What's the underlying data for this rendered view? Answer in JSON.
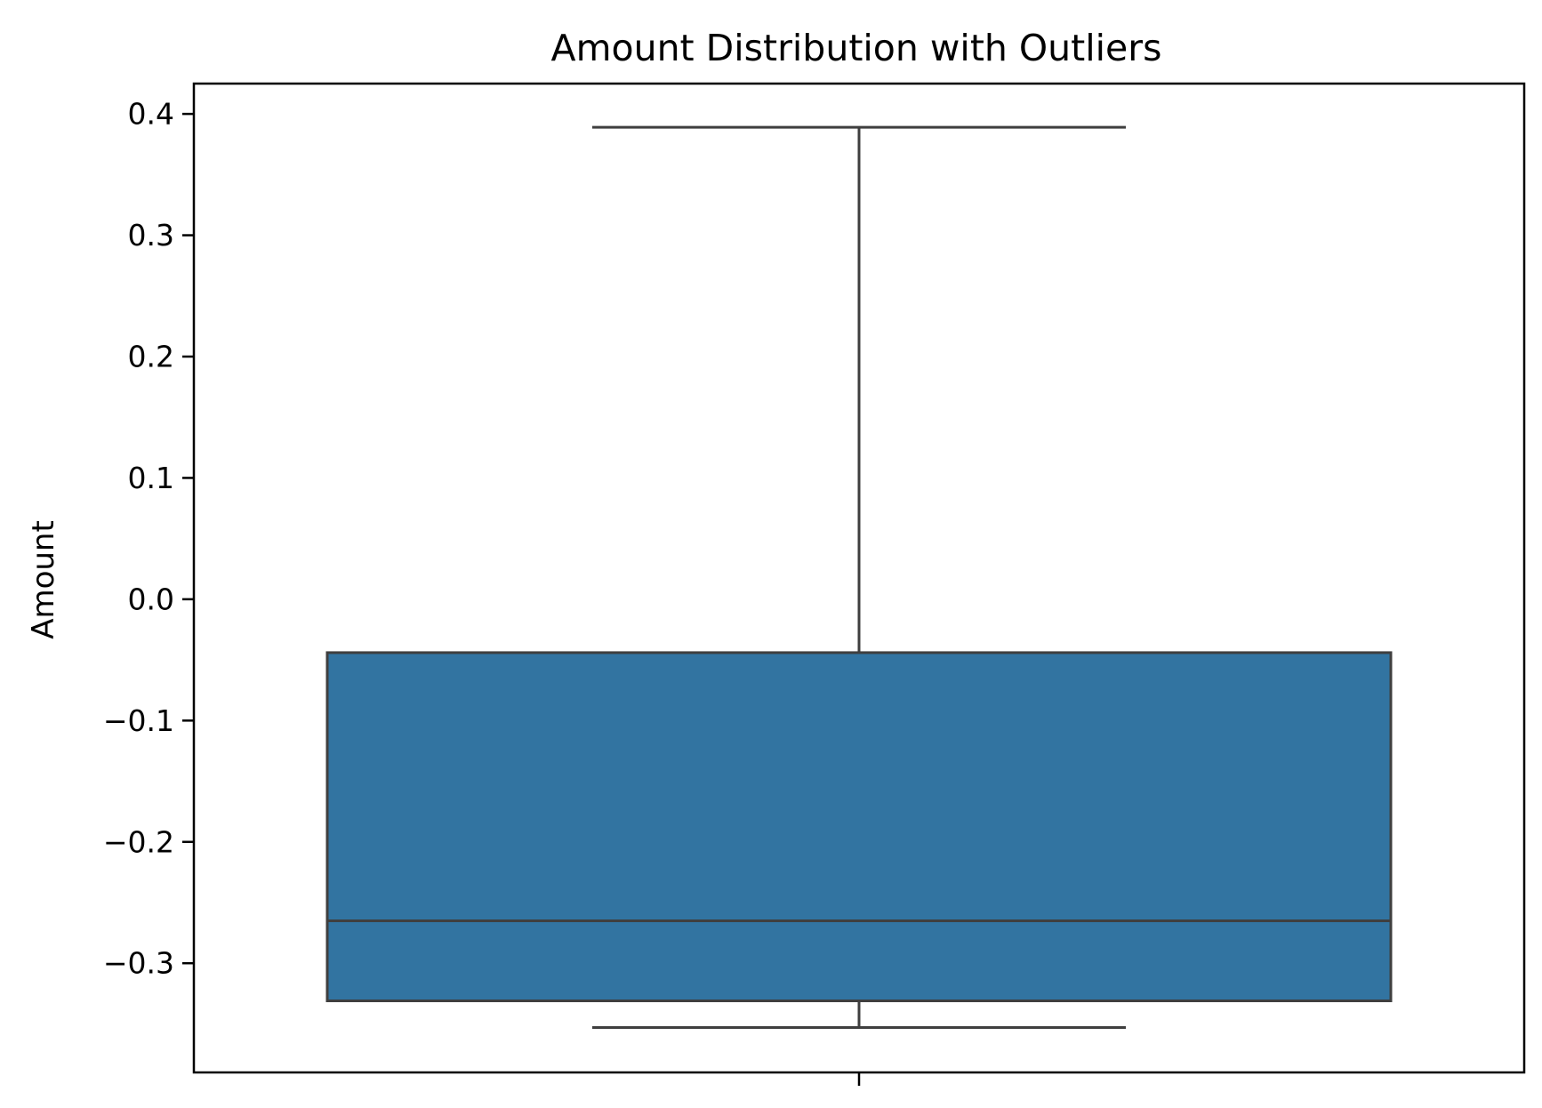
{
  "chart_data": {
    "type": "box",
    "title": "Amount Distribution with Outliers",
    "xlabel": "",
    "ylabel": "Amount",
    "ylim": [
      -0.39,
      0.425
    ],
    "yticks": [
      {
        "value": -0.3,
        "label": "−0.3"
      },
      {
        "value": -0.2,
        "label": "−0.2"
      },
      {
        "value": -0.1,
        "label": "−0.1"
      },
      {
        "value": 0.0,
        "label": "0.0"
      },
      {
        "value": 0.1,
        "label": "0.1"
      },
      {
        "value": 0.2,
        "label": "0.2"
      },
      {
        "value": 0.3,
        "label": "0.3"
      },
      {
        "value": 0.4,
        "label": "0.4"
      }
    ],
    "box": {
      "whisker_low": -0.353,
      "q1": -0.331,
      "median": -0.265,
      "q3": -0.044,
      "whisker_high": 0.389
    },
    "grid": false,
    "colors": {
      "box_fill": "#3274a1",
      "line": "#3f3f3f",
      "axes": "#000000"
    }
  }
}
